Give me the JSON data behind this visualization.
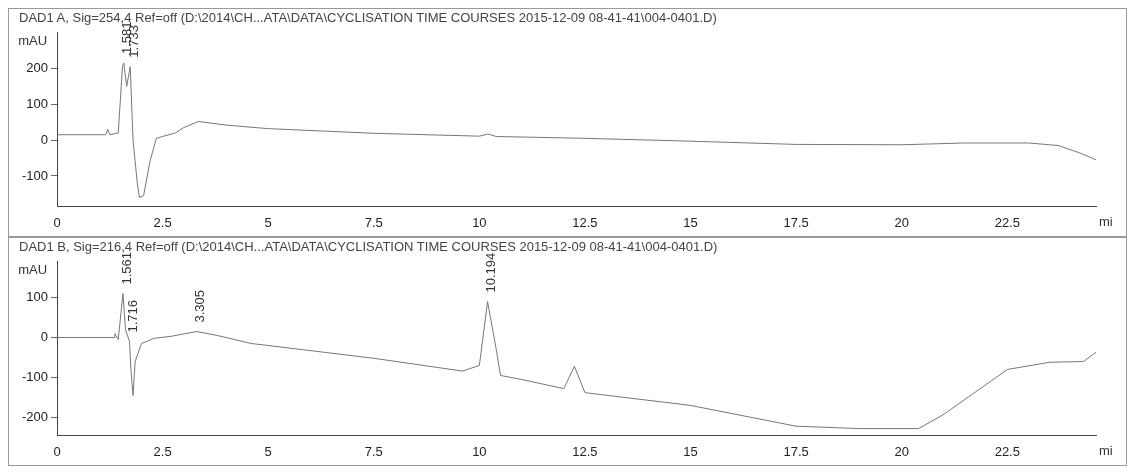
{
  "chart_data": [
    {
      "type": "line",
      "title": "DAD1 A, Sig=254,4 Ref=off (D:\\2014\\CH...ATA\\DATA\\CYCLISATION TIME COURSES 2015-12-09 08-41-41\\004-0401.D)",
      "xlabel": "mi",
      "ylabel": "mAU",
      "x": [
        0,
        1.15,
        1.2,
        1.25,
        1.45,
        1.55,
        1.581,
        1.65,
        1.733,
        1.8,
        1.9,
        1.95,
        2.05,
        2.2,
        2.35,
        2.5,
        2.8,
        3.0,
        3.35,
        4,
        5,
        7.5,
        10,
        10.2,
        10.4,
        12.5,
        15,
        17.5,
        20,
        21.5,
        23,
        23.7,
        24.2,
        24.6
      ],
      "series": [
        {
          "color": "#777777",
          "values": [
            15,
            15,
            30,
            15,
            20,
            205,
            215,
            150,
            205,
            0,
            -120,
            -160,
            -155,
            -60,
            5,
            10,
            20,
            35,
            52,
            42,
            32,
            19,
            11,
            17,
            10,
            5,
            -3,
            -12,
            -13,
            -8,
            -8,
            -15,
            -35,
            -55
          ]
        }
      ],
      "annotations": [
        {
          "text": "1.581",
          "x": 1.581,
          "y": 215
        },
        {
          "text": "1.733",
          "x": 1.733,
          "y": 205
        }
      ],
      "xlim": [
        0,
        24.6
      ],
      "ylim": [
        -185,
        300
      ],
      "xticks": [
        0,
        2.5,
        5,
        7.5,
        10,
        12.5,
        15,
        17.5,
        20,
        22.5
      ],
      "yticks": [
        -100,
        0,
        100,
        200
      ],
      "grid": false,
      "legend": false
    },
    {
      "type": "line",
      "title": "DAD1 B, Sig=216,4 Ref=off (D:\\2014\\CH...ATA\\DATA\\CYCLISATION TIME COURSES 2015-12-09 08-41-41\\004-0401.D)",
      "xlabel": "mi",
      "ylabel": "mAU",
      "x": [
        0,
        1.35,
        1.37,
        1.45,
        1.561,
        1.62,
        1.716,
        1.75,
        1.8,
        1.85,
        2.0,
        2.3,
        2.7,
        3.305,
        3.8,
        4.6,
        5,
        7.5,
        9.6,
        10.0,
        10.194,
        10.4,
        10.5,
        11,
        12,
        12.25,
        12.5,
        15,
        17.5,
        19,
        20.4,
        21,
        22.5,
        23.5,
        24.3,
        24.6
      ],
      "series": [
        {
          "color": "#777777",
          "values": [
            0,
            0,
            10,
            -5,
            110,
            20,
            -10,
            -80,
            -145,
            -60,
            -15,
            -2,
            3,
            15,
            5,
            -15,
            -20,
            -52,
            -84,
            -70,
            90,
            -30,
            -95,
            -105,
            -128,
            -72,
            -138,
            -170,
            -222,
            -228,
            -228,
            -192,
            -80,
            -62,
            -60,
            -37
          ]
        }
      ],
      "annotations": [
        {
          "text": "1.561",
          "x": 1.561,
          "y": 110
        },
        {
          "text": "1.716",
          "x": 1.716,
          "y": -10
        },
        {
          "text": "3.305",
          "x": 3.305,
          "y": 15
        },
        {
          "text": "10.194",
          "x": 10.194,
          "y": 90
        }
      ],
      "xlim": [
        0,
        24.6
      ],
      "ylim": [
        -245,
        190
      ],
      "xticks": [
        0,
        2.5,
        5,
        7.5,
        10,
        12.5,
        15,
        17.5,
        20,
        22.5
      ],
      "yticks": [
        -200,
        -100,
        0,
        100
      ],
      "grid": false,
      "legend": false
    }
  ]
}
